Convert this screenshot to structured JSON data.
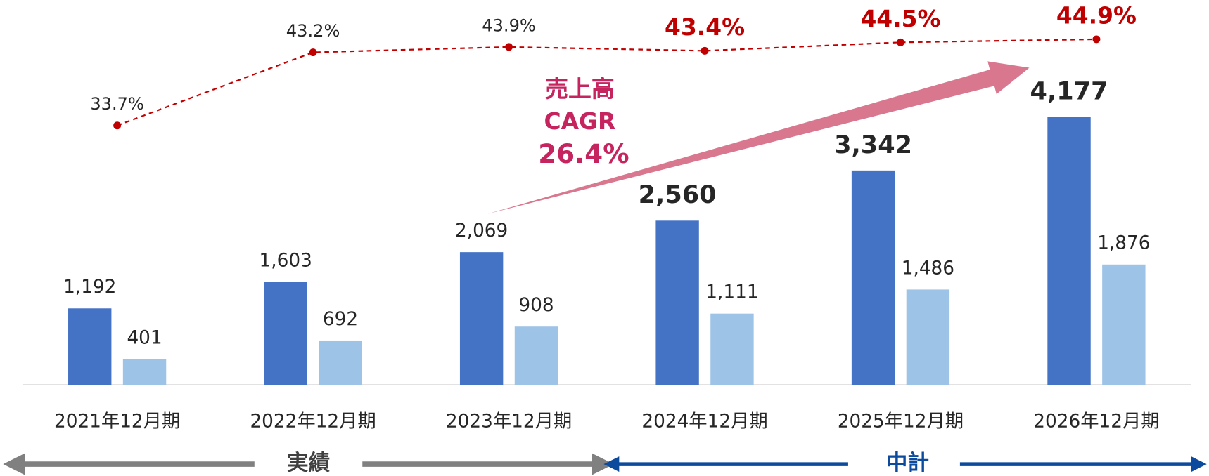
{
  "chart_data": {
    "type": "bar",
    "categories": [
      "2021年12月期",
      "2022年12月期",
      "2023年12月期",
      "2024年12月期",
      "2025年12月期",
      "2026年12月期"
    ],
    "series": [
      {
        "color": "#4472c4",
        "values": [
          1192,
          1603,
          2069,
          2560,
          3342,
          4177
        ],
        "value_labels": [
          "1,192",
          "1,603",
          "2,069",
          "2,560",
          "3,342",
          "4,177"
        ]
      },
      {
        "color": "#9dc3e6",
        "values": [
          401,
          692,
          908,
          1111,
          1486,
          1876
        ],
        "value_labels": [
          "401",
          "692",
          "908",
          "1,111",
          "1,486",
          "1,876"
        ]
      },
      {
        "type": "line",
        "axis": "y2",
        "color": "#c00000",
        "values": [
          33.7,
          43.2,
          43.9,
          43.4,
          44.5,
          44.9
        ],
        "value_labels": [
          "33.7%",
          "43.2%",
          "43.9%",
          "43.4%",
          "44.5%",
          "44.9%"
        ]
      }
    ],
    "ylim": [
      0,
      6000
    ],
    "y2lim": [
      0,
      50
    ],
    "annotations": [
      "売上高",
      "CAGR",
      "26.4%"
    ],
    "periods": [
      "実績",
      "中計"
    ]
  }
}
